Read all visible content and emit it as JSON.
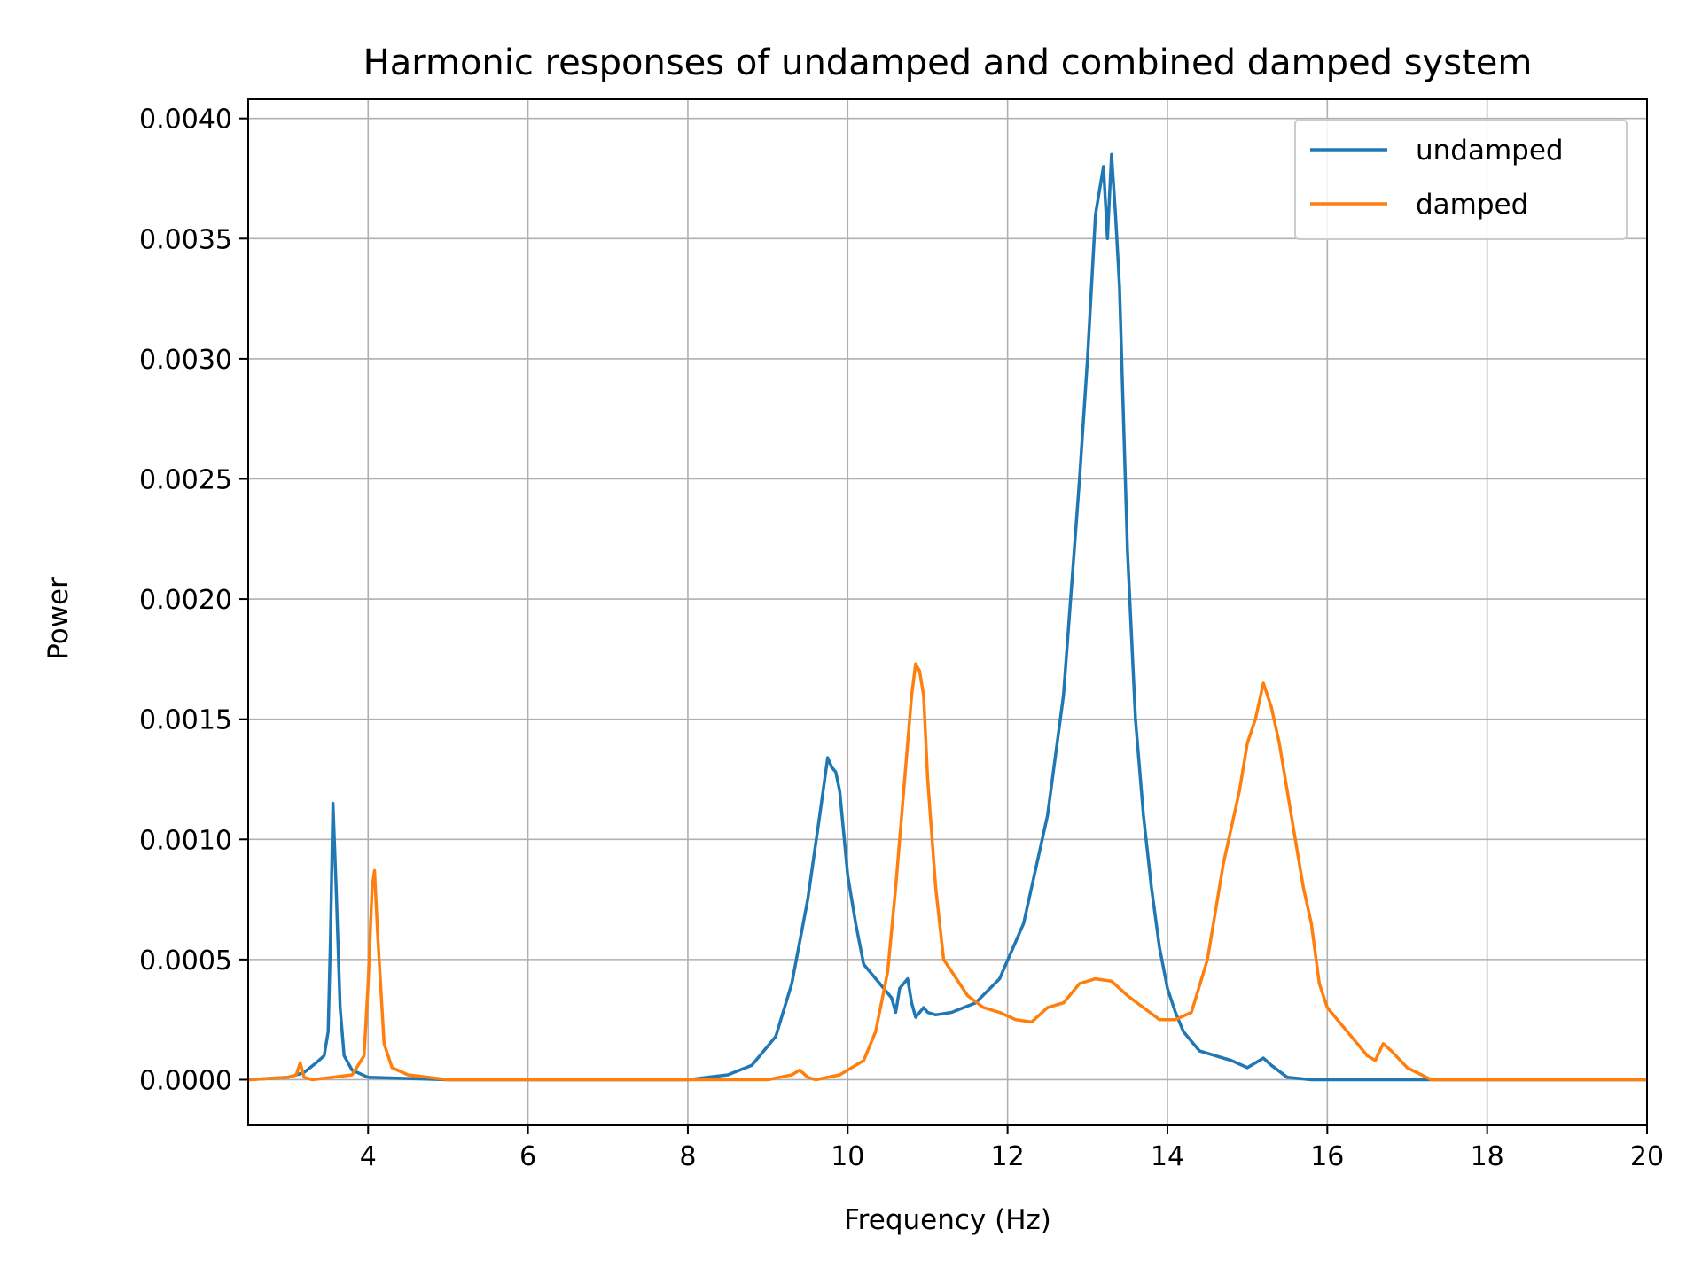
{
  "chart_data": {
    "type": "line",
    "title": "Harmonic responses of undamped and combined damped system",
    "xlabel": "Frequency (Hz)",
    "ylabel": "Power",
    "xlim": [
      2.5,
      20
    ],
    "ylim": [
      -0.00019,
      0.00408
    ],
    "xticks": [
      4,
      6,
      8,
      10,
      12,
      14,
      16,
      18,
      20
    ],
    "xtick_labels": [
      "4",
      "6",
      "8",
      "10",
      "12",
      "14",
      "16",
      "18",
      "20"
    ],
    "yticks": [
      0.0,
      0.0005,
      0.001,
      0.0015,
      0.002,
      0.0025,
      0.003,
      0.0035,
      0.004
    ],
    "ytick_labels": [
      "0.0000",
      "0.0005",
      "0.0010",
      "0.0015",
      "0.0020",
      "0.0025",
      "0.0030",
      "0.0035",
      "0.0040"
    ],
    "grid": true,
    "legend_position": "top-right",
    "series": [
      {
        "name": "undamped",
        "color": "#1f77b4",
        "x": [
          2.5,
          3.0,
          3.2,
          3.35,
          3.45,
          3.5,
          3.53,
          3.56,
          3.6,
          3.65,
          3.7,
          3.8,
          4.0,
          5.0,
          8.0,
          8.5,
          8.8,
          9.1,
          9.3,
          9.5,
          9.65,
          9.75,
          9.8,
          9.85,
          9.9,
          10.0,
          10.1,
          10.2,
          10.4,
          10.55,
          10.6,
          10.65,
          10.75,
          10.8,
          10.85,
          10.95,
          11.0,
          11.1,
          11.3,
          11.6,
          11.9,
          12.2,
          12.5,
          12.7,
          12.9,
          13.0,
          13.1,
          13.2,
          13.25,
          13.3,
          13.35,
          13.4,
          13.5,
          13.6,
          13.7,
          13.8,
          13.9,
          14.0,
          14.1,
          14.2,
          14.3,
          14.4,
          14.6,
          14.8,
          15.0,
          15.1,
          15.2,
          15.3,
          15.5,
          15.8,
          20.0
        ],
        "y": [
          0.0,
          1e-05,
          3e-05,
          7e-05,
          0.0001,
          0.0002,
          0.0006,
          0.00115,
          0.0008,
          0.0003,
          0.0001,
          4e-05,
          1e-05,
          0.0,
          0.0,
          2e-05,
          6e-05,
          0.00018,
          0.0004,
          0.00075,
          0.0011,
          0.00134,
          0.0013,
          0.00128,
          0.0012,
          0.00085,
          0.00065,
          0.00048,
          0.0004,
          0.00034,
          0.00028,
          0.00038,
          0.00042,
          0.00032,
          0.00026,
          0.0003,
          0.00028,
          0.00027,
          0.00028,
          0.00032,
          0.00042,
          0.00065,
          0.0011,
          0.0016,
          0.0025,
          0.003,
          0.0036,
          0.0038,
          0.0035,
          0.00385,
          0.0036,
          0.0033,
          0.0022,
          0.0015,
          0.0011,
          0.0008,
          0.00055,
          0.00038,
          0.00028,
          0.0002,
          0.00016,
          0.00012,
          0.0001,
          8e-05,
          5e-05,
          7e-05,
          9e-05,
          6e-05,
          1e-05,
          0.0,
          0.0
        ]
      },
      {
        "name": "damped",
        "color": "#ff7f0e",
        "x": [
          2.5,
          3.0,
          3.1,
          3.15,
          3.2,
          3.3,
          3.8,
          3.95,
          4.0,
          4.05,
          4.08,
          4.12,
          4.2,
          4.3,
          4.5,
          5.0,
          9.0,
          9.3,
          9.4,
          9.5,
          9.6,
          9.9,
          10.05,
          10.2,
          10.35,
          10.5,
          10.6,
          10.7,
          10.8,
          10.85,
          10.9,
          10.95,
          11.0,
          11.1,
          11.2,
          11.3,
          11.5,
          11.7,
          11.9,
          12.1,
          12.3,
          12.5,
          12.7,
          12.9,
          13.1,
          13.3,
          13.5,
          13.7,
          13.9,
          14.1,
          14.3,
          14.5,
          14.7,
          14.9,
          15.0,
          15.1,
          15.2,
          15.3,
          15.4,
          15.5,
          15.6,
          15.7,
          15.8,
          15.9,
          16.0,
          16.2,
          16.4,
          16.5,
          16.6,
          16.7,
          16.8,
          17.0,
          17.3,
          20.0
        ],
        "y": [
          0.0,
          1e-05,
          2e-05,
          7e-05,
          1e-05,
          0.0,
          2e-05,
          0.0001,
          0.0004,
          0.0008,
          0.00087,
          0.0006,
          0.00015,
          5e-05,
          2e-05,
          0.0,
          0.0,
          2e-05,
          4e-05,
          1e-05,
          0.0,
          2e-05,
          5e-05,
          8e-05,
          0.0002,
          0.00045,
          0.0008,
          0.0012,
          0.0016,
          0.00173,
          0.0017,
          0.0016,
          0.00125,
          0.0008,
          0.0005,
          0.00045,
          0.00035,
          0.0003,
          0.00028,
          0.00025,
          0.00024,
          0.0003,
          0.00032,
          0.0004,
          0.00042,
          0.00041,
          0.00035,
          0.0003,
          0.00025,
          0.00025,
          0.00028,
          0.0005,
          0.0009,
          0.0012,
          0.0014,
          0.0015,
          0.00165,
          0.00155,
          0.0014,
          0.0012,
          0.001,
          0.0008,
          0.00065,
          0.0004,
          0.0003,
          0.00022,
          0.00014,
          0.0001,
          8e-05,
          0.00015,
          0.00012,
          5e-05,
          0.0,
          0.0
        ]
      }
    ]
  }
}
